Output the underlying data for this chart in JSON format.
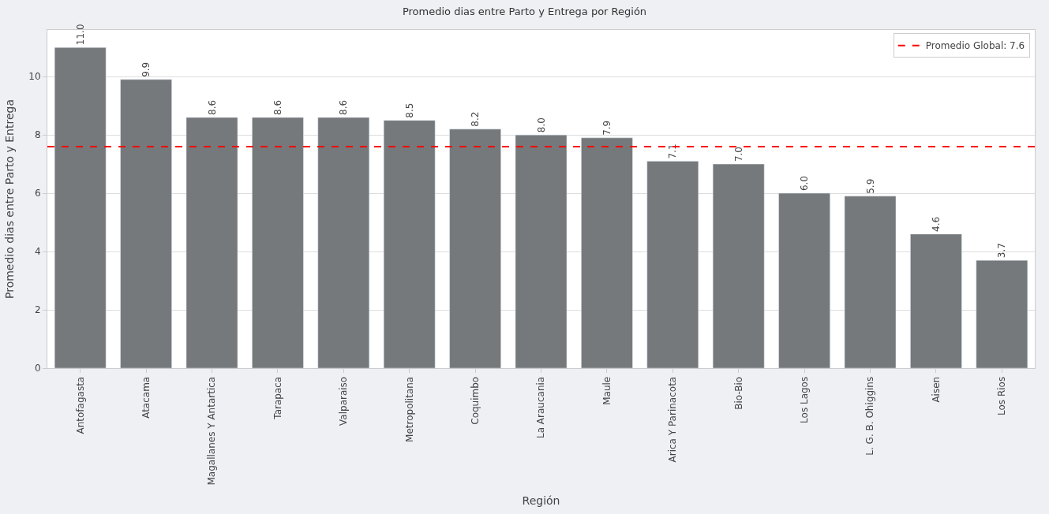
{
  "chart_data": {
    "type": "bar",
    "title": "Promedio dias entre Parto y Entrega por Región",
    "xlabel": "Región",
    "ylabel": "Promedio dias entre Parto y Entrega",
    "categories": [
      "Antofagasta",
      "Atacama",
      "Magallanes Y Antartica",
      "Tarapaca",
      "Valparaiso",
      "Metropolitana",
      "Coquimbo",
      "La Araucania",
      "Maule",
      "Arica Y Parinacota",
      "Bio-Bio",
      "Los Lagos",
      "L. G. B. Ohiggins",
      "Aisen",
      "Los Rios"
    ],
    "values": [
      11.0,
      9.9,
      8.6,
      8.6,
      8.6,
      8.5,
      8.2,
      8.0,
      7.9,
      7.1,
      7.0,
      6.0,
      5.9,
      4.6,
      3.7
    ],
    "color": "#75797b",
    "value_labels": [
      "11.0",
      "9.9",
      "8.6",
      "8.6",
      "8.6",
      "8.5",
      "8.2",
      "8.0",
      "7.9",
      "7.1",
      "7.0",
      "6.0",
      "5.9",
      "4.6",
      "3.7"
    ],
    "ylim": [
      0,
      11.6
    ],
    "yticks": [
      0,
      2,
      4,
      6,
      8,
      10
    ],
    "grid": "y",
    "legend": "top right",
    "ref_lines": [
      {
        "axis": "y",
        "value": 7.6,
        "label": "Promedio Global: 7.6",
        "color": "#ff0000",
        "line_style": "dashed"
      }
    ]
  }
}
